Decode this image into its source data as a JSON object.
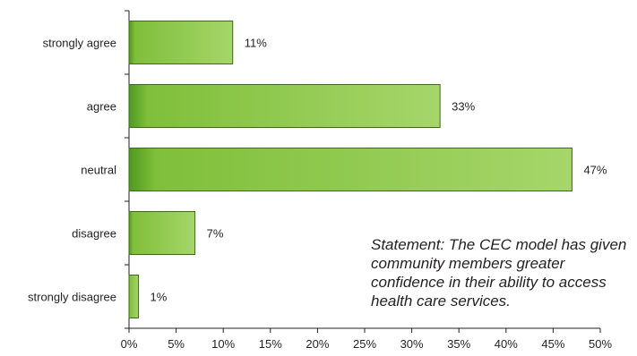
{
  "chart_data": {
    "type": "bar",
    "orientation": "horizontal",
    "categories": [
      "strongly agree",
      "agree",
      "neutral",
      "disagree",
      "strongly disagree"
    ],
    "values": [
      11,
      33,
      47,
      7,
      1
    ],
    "value_labels": [
      "11%",
      "33%",
      "47%",
      "7%",
      "1%"
    ],
    "x_ticks": [
      "0%",
      "5%",
      "10%",
      "15%",
      "20%",
      "25%",
      "30%",
      "35%",
      "40%",
      "45%",
      "50%"
    ],
    "xlim": [
      0,
      50
    ],
    "grid": false,
    "legend": "none",
    "bar_color": "#8cc63f",
    "title": "",
    "xlabel": "",
    "ylabel": ""
  },
  "annotation": "Statement: The CEC model has given community members greater confidence in their ability to access health care services."
}
